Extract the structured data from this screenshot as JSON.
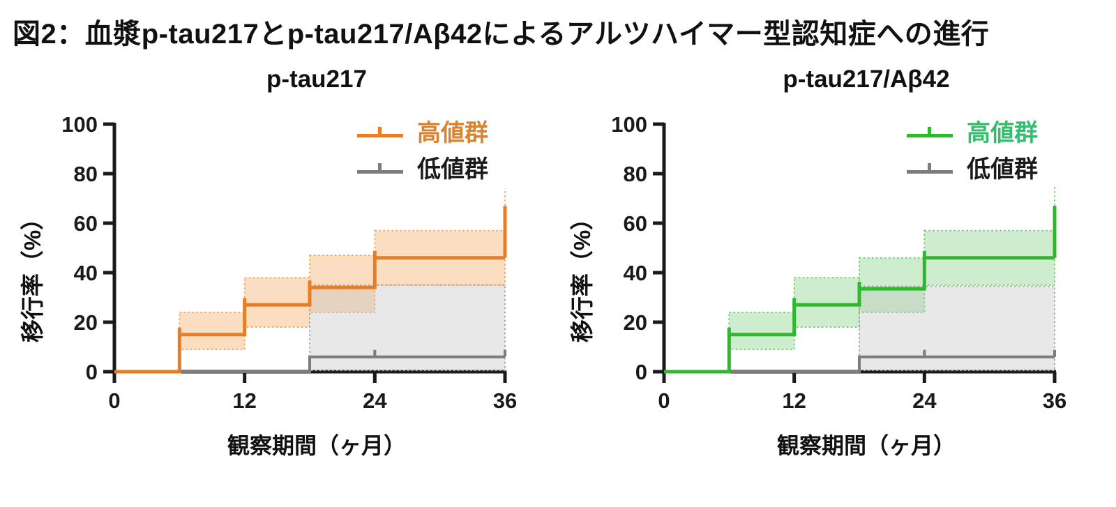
{
  "figure_title": "図2：血漿p-tau217とp-tau217/Aβ42によるアルツハイマー型認知症への進行",
  "background": "#ffffff",
  "chart_data": [
    {
      "type": "step",
      "subtype": "kaplan-meier-cumulative-incidence",
      "title": "p-tau217",
      "xlabel": "観察期間（ヶ月）",
      "ylabel": "移行率（%）",
      "xlim": [
        0,
        36
      ],
      "ylim": [
        0,
        100
      ],
      "xticks": [
        0,
        12,
        24,
        36
      ],
      "yticks": [
        0,
        20,
        40,
        60,
        80,
        100
      ],
      "grid": false,
      "legend_position": "top-right-inside",
      "axis_color": "#1a1a1a",
      "legend": [
        {
          "label": "高値群",
          "line_color": "#E87E23",
          "label_color": "#D9822F"
        },
        {
          "label": "低値群",
          "line_color": "#7C7C7C",
          "label_color": "#1a1a1a"
        }
      ],
      "series": [
        {
          "name": "高値群",
          "color": "#E87E23",
          "width": 5,
          "ci_fill": "#F5A95F",
          "ci_opacity": 0.38,
          "ci_stroke": "#EFA35C",
          "points": [
            [
              0,
              0
            ],
            [
              6,
              15
            ],
            [
              12,
              27
            ],
            [
              18,
              34
            ],
            [
              24,
              46
            ],
            [
              36,
              46
            ]
          ],
          "censors": [
            {
              "x": 6,
              "v": 15
            },
            {
              "x": 12,
              "v": 27
            },
            {
              "x": 18,
              "v": 34
            },
            {
              "x": 24,
              "v": 46
            }
          ],
          "end_tick": {
            "x": 36,
            "from": 46,
            "to": 67
          },
          "ci": [
            {
              "x0": 6,
              "x1": 12,
              "lo": 9,
              "hi": 24
            },
            {
              "x0": 12,
              "x1": 18,
              "lo": 18,
              "hi": 38
            },
            {
              "x0": 18,
              "x1": 24,
              "lo": 24,
              "hi": 47
            },
            {
              "x0": 24,
              "x1": 36,
              "lo": 35,
              "hi": 57
            }
          ],
          "ci_end": {
            "x": 36,
            "from": 57,
            "to": 74
          }
        },
        {
          "name": "低値群",
          "color": "#7C7C7C",
          "width": 4,
          "ci_fill": "#BDBDBD",
          "ci_opacity": 0.35,
          "ci_stroke": "#A0A0A0",
          "points": [
            [
              0,
              0
            ],
            [
              18,
              6
            ],
            [
              36,
              6
            ]
          ],
          "censors": [
            {
              "x": 24,
              "v": 6
            },
            {
              "x": 36,
              "v": 6
            }
          ],
          "ci": [
            {
              "x0": 18,
              "x1": 36,
              "lo": 0.5,
              "hi": 35
            }
          ]
        }
      ]
    },
    {
      "type": "step",
      "subtype": "kaplan-meier-cumulative-incidence",
      "title": "p-tau217/Aβ42",
      "xlabel": "観察期間（ヶ月）",
      "ylabel": "移行率（%）",
      "xlim": [
        0,
        36
      ],
      "ylim": [
        0,
        100
      ],
      "xticks": [
        0,
        12,
        24,
        36
      ],
      "yticks": [
        0,
        20,
        40,
        60,
        80,
        100
      ],
      "grid": false,
      "legend_position": "top-right-inside",
      "axis_color": "#1a1a1a",
      "legend": [
        {
          "label": "高値群",
          "line_color": "#2EB82E",
          "label_color": "#35BD6E"
        },
        {
          "label": "低値群",
          "line_color": "#7C7C7C",
          "label_color": "#1a1a1a"
        }
      ],
      "series": [
        {
          "name": "高値群",
          "color": "#2EB82E",
          "width": 5,
          "ci_fill": "#7ED07E",
          "ci_opacity": 0.38,
          "ci_stroke": "#6FC76F",
          "points": [
            [
              0,
              0
            ],
            [
              6,
              15
            ],
            [
              12,
              27
            ],
            [
              18,
              33.5
            ],
            [
              24,
              46
            ],
            [
              36,
              46
            ]
          ],
          "censors": [
            {
              "x": 6,
              "v": 15
            },
            {
              "x": 12,
              "v": 27
            },
            {
              "x": 18,
              "v": 33.5
            },
            {
              "x": 24,
              "v": 46
            }
          ],
          "end_tick": {
            "x": 36,
            "from": 46,
            "to": 67
          },
          "ci": [
            {
              "x0": 6,
              "x1": 12,
              "lo": 9,
              "hi": 24
            },
            {
              "x0": 12,
              "x1": 18,
              "lo": 18,
              "hi": 38
            },
            {
              "x0": 18,
              "x1": 24,
              "lo": 24,
              "hi": 46
            },
            {
              "x0": 24,
              "x1": 36,
              "lo": 35,
              "hi": 57
            }
          ],
          "ci_end": {
            "x": 36,
            "from": 57,
            "to": 75
          }
        },
        {
          "name": "低値群",
          "color": "#7C7C7C",
          "width": 4,
          "ci_fill": "#BDBDBD",
          "ci_opacity": 0.35,
          "ci_stroke": "#A0A0A0",
          "points": [
            [
              0,
              0
            ],
            [
              18,
              6
            ],
            [
              36,
              6
            ]
          ],
          "censors": [
            {
              "x": 24,
              "v": 6
            },
            {
              "x": 36,
              "v": 6
            }
          ],
          "ci": [
            {
              "x0": 18,
              "x1": 36,
              "lo": 0.5,
              "hi": 34.5
            }
          ]
        }
      ]
    }
  ]
}
